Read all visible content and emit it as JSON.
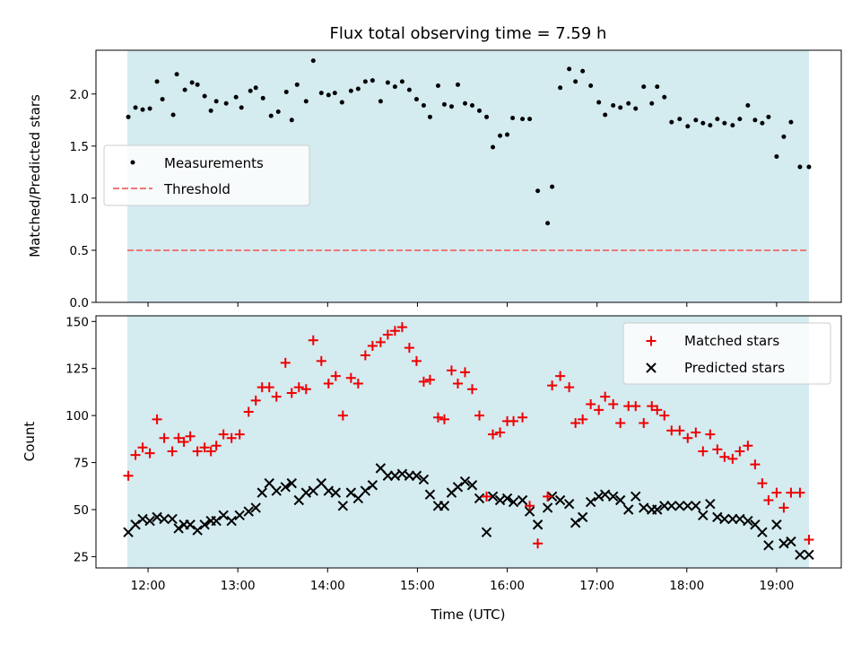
{
  "colors": {
    "observing_band": "#d4ebf0",
    "measurement": "#000000",
    "threshold": "#ee7777",
    "matched": "#ee0000",
    "predicted": "#000000"
  },
  "chart_data": [
    {
      "type": "scatter",
      "title": "Flux total observing time = 7.59 h",
      "ylabel": "Matched/Predicted stars",
      "xlabel": "",
      "xlim_hours": [
        11.42,
        19.72
      ],
      "ylim": [
        0,
        2.42
      ],
      "yticks": [
        0.0,
        0.5,
        1.0,
        1.5,
        2.0
      ],
      "ytick_labels": [
        "0.0",
        "0.5",
        "1.0",
        "1.5",
        "2.0"
      ],
      "observing_span_hours": [
        11.77,
        19.36
      ],
      "legend_position": "center-left",
      "threshold": {
        "name": "Threshold",
        "value": 0.5,
        "style": "dashed"
      },
      "series": [
        {
          "name": "Measurements",
          "x": [
            11.78,
            11.86,
            11.94,
            12.02,
            12.1,
            12.16,
            12.28,
            12.32,
            12.41,
            12.49,
            12.55,
            12.63,
            12.7,
            12.76,
            12.87,
            12.98,
            13.04,
            13.14,
            13.2,
            13.28,
            13.37,
            13.45,
            13.54,
            13.6,
            13.66,
            13.76,
            13.84,
            13.93,
            14.01,
            14.08,
            14.16,
            14.26,
            14.34,
            14.42,
            14.5,
            14.59,
            14.67,
            14.75,
            14.83,
            14.91,
            14.99,
            15.07,
            15.14,
            15.23,
            15.3,
            15.38,
            15.45,
            15.53,
            15.61,
            15.69,
            15.77,
            15.84,
            15.92,
            16.0,
            16.06,
            16.17,
            16.25,
            16.34,
            16.45,
            16.5,
            16.59,
            16.69,
            16.76,
            16.84,
            16.93,
            17.02,
            17.09,
            17.18,
            17.26,
            17.35,
            17.43,
            17.52,
            17.61,
            17.67,
            17.75,
            17.83,
            17.92,
            18.01,
            18.1,
            18.18,
            18.26,
            18.34,
            18.42,
            18.51,
            18.59,
            18.68,
            18.76,
            18.84,
            18.91,
            19.0,
            19.08,
            19.16,
            19.26,
            19.36
          ],
          "y": [
            1.78,
            1.87,
            1.85,
            1.86,
            2.12,
            1.95,
            1.8,
            2.19,
            2.04,
            2.11,
            2.09,
            1.98,
            1.84,
            1.93,
            1.91,
            1.97,
            1.87,
            2.03,
            2.06,
            1.96,
            1.79,
            1.83,
            2.02,
            1.75,
            2.09,
            1.93,
            2.32,
            2.01,
            1.99,
            2.01,
            1.92,
            2.03,
            2.05,
            2.12,
            2.13,
            1.93,
            2.11,
            2.07,
            2.12,
            2.04,
            1.95,
            1.89,
            1.78,
            2.08,
            1.9,
            1.88,
            2.09,
            1.91,
            1.89,
            1.84,
            1.78,
            1.49,
            1.6,
            1.61,
            1.77,
            1.76,
            1.76,
            1.07,
            0.76,
            1.11,
            2.06,
            2.24,
            2.12,
            2.22,
            2.08,
            1.92,
            1.8,
            1.89,
            1.87,
            1.91,
            1.86,
            2.07,
            1.91,
            2.07,
            1.97,
            1.73,
            1.76,
            1.69,
            1.75,
            1.72,
            1.7,
            1.76,
            1.72,
            1.7,
            1.76,
            1.89,
            1.75,
            1.72,
            1.78,
            1.4,
            1.59,
            1.73,
            1.3,
            1.3
          ]
        }
      ]
    },
    {
      "type": "scatter",
      "title": "",
      "ylabel": "Count",
      "xlabel": "Time (UTC)",
      "xlim_hours": [
        11.42,
        19.72
      ],
      "xticks_hours": [
        12,
        13,
        14,
        15,
        16,
        17,
        18,
        19
      ],
      "xtick_labels": [
        "12:00",
        "13:00",
        "14:00",
        "15:00",
        "16:00",
        "17:00",
        "18:00",
        "19:00"
      ],
      "ylim": [
        19,
        153
      ],
      "yticks": [
        25,
        50,
        75,
        100,
        125,
        150
      ],
      "ytick_labels": [
        "25",
        "50",
        "75",
        "100",
        "125",
        "150"
      ],
      "observing_span_hours": [
        11.77,
        19.36
      ],
      "legend_position": "top-right",
      "series": [
        {
          "name": "Matched stars",
          "marker": "+",
          "x": [
            11.78,
            11.86,
            11.94,
            12.02,
            12.1,
            12.18,
            12.27,
            12.34,
            12.4,
            12.47,
            12.55,
            12.63,
            12.7,
            12.76,
            12.84,
            12.93,
            13.02,
            13.12,
            13.2,
            13.27,
            13.35,
            13.43,
            13.53,
            13.6,
            13.68,
            13.76,
            13.84,
            13.93,
            14.01,
            14.09,
            14.17,
            14.26,
            14.34,
            14.42,
            14.5,
            14.59,
            14.67,
            14.75,
            14.83,
            14.91,
            14.99,
            15.07,
            15.14,
            15.23,
            15.3,
            15.38,
            15.45,
            15.53,
            15.61,
            15.69,
            15.77,
            15.84,
            15.92,
            16.0,
            16.07,
            16.17,
            16.25,
            16.34,
            16.45,
            16.5,
            16.59,
            16.69,
            16.76,
            16.84,
            16.93,
            17.02,
            17.09,
            17.18,
            17.26,
            17.35,
            17.43,
            17.52,
            17.61,
            17.67,
            17.75,
            17.83,
            17.92,
            18.01,
            18.1,
            18.18,
            18.26,
            18.34,
            18.42,
            18.51,
            18.59,
            18.68,
            18.76,
            18.84,
            18.91,
            19.0,
            19.08,
            19.16,
            19.26,
            19.36
          ],
          "y": [
            68,
            79,
            83,
            80,
            98,
            88,
            81,
            88,
            86,
            89,
            81,
            83,
            81,
            84,
            90,
            88,
            90,
            102,
            108,
            115,
            115,
            110,
            128,
            112,
            115,
            114,
            140,
            129,
            117,
            121,
            100,
            120,
            117,
            132,
            137,
            139,
            143,
            145,
            147,
            136,
            129,
            118,
            119,
            99,
            98,
            124,
            117,
            123,
            114,
            100,
            57,
            90,
            91,
            97,
            97,
            99,
            52,
            32,
            57,
            116,
            121,
            115,
            96,
            98,
            106,
            103,
            110,
            106,
            96,
            105,
            105,
            96,
            105,
            103,
            100,
            92,
            92,
            88,
            91,
            81,
            90,
            82,
            78,
            77,
            81,
            84,
            74,
            64,
            55,
            59,
            51,
            59,
            59,
            34
          ]
        },
        {
          "name": "Predicted stars",
          "marker": "x",
          "x": [
            11.78,
            11.86,
            11.94,
            12.02,
            12.1,
            12.18,
            12.27,
            12.34,
            12.4,
            12.47,
            12.55,
            12.63,
            12.7,
            12.76,
            12.84,
            12.93,
            13.02,
            13.12,
            13.2,
            13.27,
            13.35,
            13.43,
            13.53,
            13.6,
            13.68,
            13.76,
            13.84,
            13.93,
            14.01,
            14.09,
            14.17,
            14.26,
            14.34,
            14.42,
            14.5,
            14.59,
            14.67,
            14.75,
            14.83,
            14.91,
            14.99,
            15.07,
            15.14,
            15.23,
            15.3,
            15.38,
            15.45,
            15.53,
            15.61,
            15.69,
            15.77,
            15.84,
            15.92,
            16.0,
            16.07,
            16.17,
            16.25,
            16.34,
            16.45,
            16.5,
            16.59,
            16.69,
            16.76,
            16.84,
            16.93,
            17.02,
            17.09,
            17.18,
            17.26,
            17.35,
            17.43,
            17.52,
            17.61,
            17.67,
            17.75,
            17.83,
            17.92,
            18.01,
            18.1,
            18.18,
            18.26,
            18.34,
            18.42,
            18.51,
            18.59,
            18.68,
            18.76,
            18.84,
            18.91,
            19.0,
            19.08,
            19.16,
            19.26,
            19.36
          ],
          "y": [
            38,
            42,
            45,
            44,
            46,
            45,
            45,
            40,
            42,
            42,
            39,
            42,
            44,
            44,
            47,
            44,
            47,
            49,
            51,
            59,
            64,
            60,
            62,
            64,
            55,
            59,
            60,
            64,
            60,
            59,
            52,
            59,
            56,
            60,
            63,
            72,
            68,
            68,
            69,
            68,
            68,
            66,
            58,
            52,
            52,
            59,
            62,
            65,
            63,
            56,
            38,
            57,
            55,
            56,
            54,
            55,
            49,
            42,
            51,
            57,
            55,
            53,
            43,
            46,
            54,
            57,
            58,
            57,
            55,
            50,
            57,
            51,
            50,
            50,
            52,
            52,
            52,
            52,
            52,
            47,
            53,
            46,
            45,
            45,
            45,
            44,
            42,
            38,
            31,
            42,
            32,
            33,
            26,
            26
          ]
        }
      ]
    }
  ]
}
